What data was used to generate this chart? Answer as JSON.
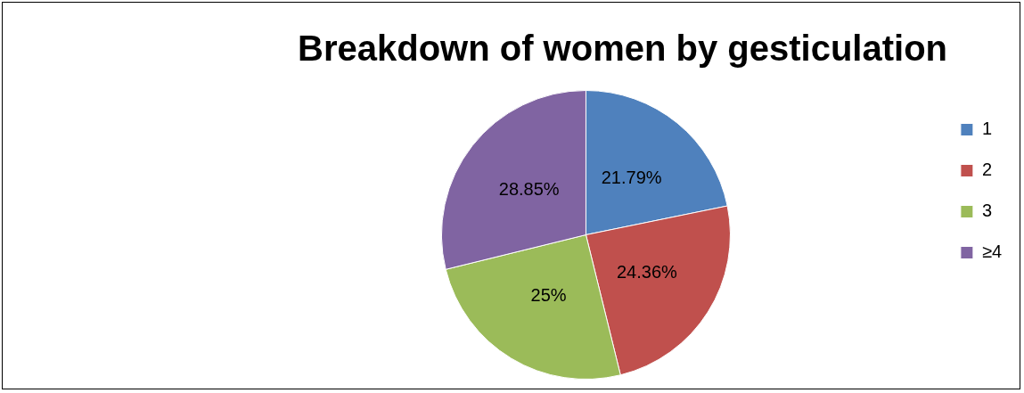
{
  "chart_data": {
    "type": "pie",
    "title": "Breakdown of women by gesticulation",
    "categories": [
      "1",
      "2",
      "3",
      "≥4"
    ],
    "values": [
      21.79,
      24.36,
      25,
      28.85
    ],
    "value_labels": [
      "21.79%",
      "24.36%",
      "25%",
      "28.85%"
    ],
    "colors": [
      "#4f81bd",
      "#c0504d",
      "#9bbb59",
      "#8064a2"
    ],
    "legend": "right"
  }
}
